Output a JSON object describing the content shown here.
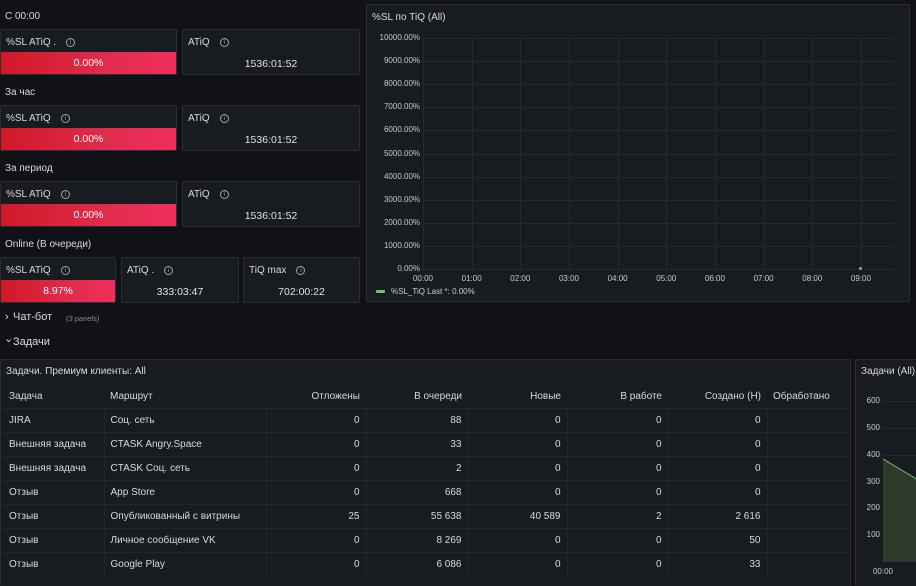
{
  "sections": {
    "since_midnight": "С 00:00",
    "per_hour": "За час",
    "per_period": "За период",
    "online": "Online (В очереди)"
  },
  "stats": {
    "row1": {
      "sl_title": "%SL ATiQ .",
      "sl_value": "0.00%",
      "atiq_title": "ATiQ",
      "atiq_value": "1536:01:52"
    },
    "row2": {
      "sl_title": "%SL ATiQ",
      "sl_value": "0.00%",
      "atiq_title": "ATiQ",
      "atiq_value": "1536:01:52"
    },
    "row3": {
      "sl_title": "%SL ATiQ",
      "sl_value": "0.00%",
      "atiq_title": "ATiQ",
      "atiq_value": "1536:01:52"
    },
    "row4": {
      "sl_title": "%SL ATiQ",
      "sl_value": "8.97%",
      "sl_fill": 0.0897,
      "atiq_title": "ATiQ .",
      "atiq_value": "333:03:47",
      "tiq_title": "TiQ max",
      "tiq_value": "702:00:22"
    }
  },
  "colors": {
    "accent_red": "#e02c4d",
    "series_green": "#73bf69",
    "background": "#111217",
    "panel": "#181b1f"
  },
  "chart_data": [
    {
      "type": "line",
      "title": "%SL по TiQ (All)",
      "y_ticks": [
        "10000.00%",
        "9000.00%",
        "8000.00%",
        "7000.00%",
        "6000.00%",
        "5000.00%",
        "4000.00%",
        "3000.00%",
        "2000.00%",
        "1000.00%",
        "0.00%"
      ],
      "x_ticks": [
        "00:00",
        "01:00",
        "02:00",
        "03:00",
        "04:00",
        "05:00",
        "06:00",
        "07:00",
        "08:00",
        "09:00"
      ],
      "ylim": [
        0,
        10000
      ],
      "grid": true,
      "legend_placement": "bottom-left",
      "series": [
        {
          "name": "%SL_TiQ",
          "legend_text": "%SL_TiQ  Last *: 0.00%",
          "x": [
            "09:00"
          ],
          "values": [
            0
          ]
        }
      ]
    },
    {
      "type": "area",
      "title": "Задачи (All)",
      "y_ticks": [
        "600",
        "500",
        "400",
        "300",
        "200",
        "100"
      ],
      "x_ticks": [
        "00:00"
      ],
      "ylim": [
        0,
        650
      ],
      "grid": true,
      "series": [
        {
          "x": [
            "00:00",
            "00:30"
          ],
          "values": [
            385,
            260
          ]
        }
      ]
    }
  ],
  "collapsed_rows": [
    {
      "label": "Чат-бот",
      "note": "(3 panels)",
      "chevron": "›"
    }
  ],
  "open_rows": [
    {
      "label": "Задачи",
      "chevron": "⌄"
    }
  ],
  "table": {
    "title": "Задачи. Премиум клиенты: All",
    "headers": [
      "Задача",
      "Маршрут",
      "Отложены",
      "В очереди",
      "Новые",
      "В работе",
      "Создано (H)",
      "Обработано"
    ],
    "rows": [
      [
        "JIRA",
        "Соц. сеть",
        "0",
        "88",
        "0",
        "0",
        "0",
        ""
      ],
      [
        "Внешняя задача",
        "CTASK Angry.Space",
        "0",
        "33",
        "0",
        "0",
        "0",
        ""
      ],
      [
        "Внешняя задача",
        "CTASK Соц. сеть",
        "0",
        "2",
        "0",
        "0",
        "0",
        ""
      ],
      [
        "Отзыв",
        "App Store",
        "0",
        "668",
        "0",
        "0",
        "0",
        ""
      ],
      [
        "Отзыв",
        "Опубликованный с витрины",
        "25",
        "55 638",
        "40 589",
        "2",
        "2 616",
        ""
      ],
      [
        "Отзыв",
        "Личное сообщение VK",
        "0",
        "8 269",
        "0",
        "0",
        "50",
        ""
      ],
      [
        "Отзыв",
        "Google Play",
        "0",
        "6 086",
        "0",
        "0",
        "33",
        ""
      ]
    ]
  },
  "icons": {
    "info": "info-icon",
    "info_glyph": "i"
  }
}
